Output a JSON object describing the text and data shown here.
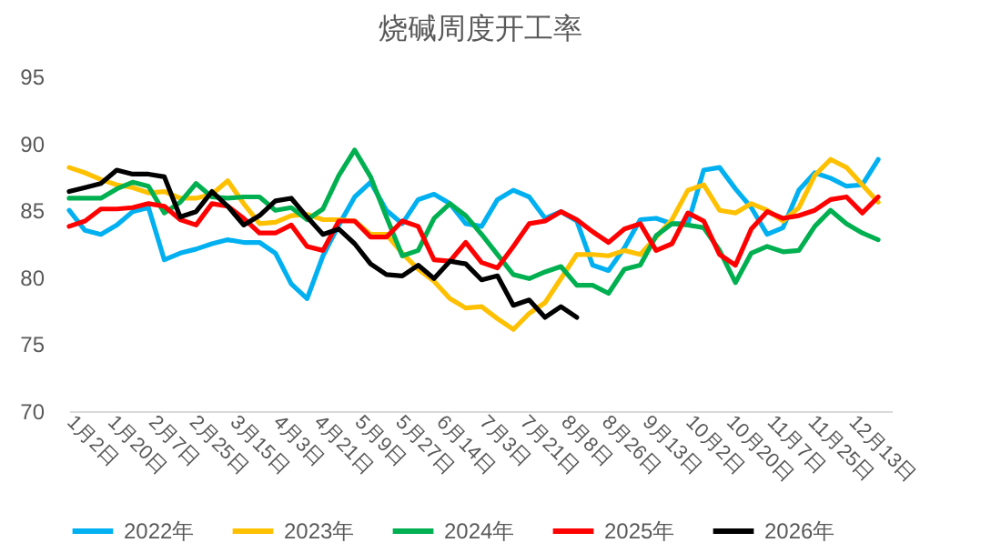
{
  "chart_data": {
    "type": "line",
    "title": "烧碱周度开工率",
    "x": [
      "--01-02",
      "--01-09",
      "--01-16",
      "--01-23",
      "--01-30",
      "--02-06",
      "--02-13",
      "--02-20",
      "--02-27",
      "--03-06",
      "--03-13",
      "--03-20",
      "--03-27",
      "--04-03",
      "--04-10",
      "--04-17",
      "--04-24",
      "--05-01",
      "--05-08",
      "--05-15",
      "--05-22",
      "--05-29",
      "--06-05",
      "--06-12",
      "--06-19",
      "--06-26",
      "--07-03",
      "--07-10",
      "--07-17",
      "--07-24",
      "--07-31",
      "--08-07",
      "--08-14",
      "--08-21",
      "--08-28",
      "--09-04",
      "--09-11",
      "--09-18",
      "--09-25",
      "--10-02",
      "--10-09",
      "--10-16",
      "--10-23",
      "--10-30",
      "--11-06",
      "--11-13",
      "--11-20",
      "--11-27",
      "--12-04",
      "--12-11",
      "--12-18",
      "--12-25"
    ],
    "xlim": [
      "--01-02",
      "--12-31"
    ],
    "xticks": [
      {
        "value": "--01-02",
        "label": "1月2日"
      },
      {
        "value": "--01-20",
        "label": "1月20日"
      },
      {
        "value": "--02-07",
        "label": "2月7日"
      },
      {
        "value": "--02-25",
        "label": "2月25日"
      },
      {
        "value": "--03-15",
        "label": "3月15日"
      },
      {
        "value": "--04-03",
        "label": "4月3日"
      },
      {
        "value": "--04-21",
        "label": "4月21日"
      },
      {
        "value": "--05-09",
        "label": "5月9日"
      },
      {
        "value": "--05-27",
        "label": "5月27日"
      },
      {
        "value": "--06-14",
        "label": "6月14日"
      },
      {
        "value": "--07-03",
        "label": "7月3日"
      },
      {
        "value": "--07-21",
        "label": "7月21日"
      },
      {
        "value": "--08-08",
        "label": "8月8日"
      },
      {
        "value": "--08-26",
        "label": "8月26日"
      },
      {
        "value": "--09-13",
        "label": "9月13日"
      },
      {
        "value": "--10-02",
        "label": "10月2日"
      },
      {
        "value": "--10-20",
        "label": "10月20日"
      },
      {
        "value": "--11-07",
        "label": "11月7日"
      },
      {
        "value": "--11-25",
        "label": "11月25日"
      },
      {
        "value": "--12-13",
        "label": "12月13日"
      }
    ],
    "ylim": [
      70,
      95
    ],
    "yticks": [
      70,
      75,
      80,
      85,
      90,
      95
    ],
    "grid": false,
    "legend": "bottom",
    "line_style": "solid",
    "series": [
      {
        "name": "2022年",
        "color": "#00b0f0",
        "values": [
          85.0,
          83.5,
          83.2,
          83.9,
          84.9,
          85.2,
          81.3,
          81.8,
          82.1,
          82.5,
          82.8,
          82.6,
          82.6,
          81.8,
          79.5,
          78.4,
          81.6,
          83.9,
          86.0,
          87.1,
          85.0,
          84.0,
          85.8,
          86.2,
          85.5,
          84.0,
          83.8,
          85.8,
          86.5,
          86.0,
          84.4,
          84.9,
          84.2,
          80.9,
          80.5,
          82.2,
          84.3,
          84.4,
          84.0,
          84.0,
          88.0,
          88.2,
          86.6,
          85.2,
          83.2,
          83.7,
          86.5,
          87.8,
          87.4,
          86.8,
          86.9,
          88.8
        ]
      },
      {
        "name": "2023年",
        "color": "#ffc000",
        "values": [
          88.2,
          87.8,
          87.3,
          86.9,
          86.7,
          86.3,
          86.4,
          85.9,
          85.9,
          86.2,
          87.2,
          85.5,
          84.0,
          84.1,
          84.6,
          84.7,
          84.3,
          84.3,
          84.2,
          83.2,
          83.2,
          81.8,
          80.6,
          79.7,
          78.4,
          77.7,
          77.8,
          76.9,
          76.1,
          77.3,
          78.1,
          79.9,
          81.7,
          81.7,
          81.6,
          82.0,
          81.7,
          83.0,
          84.3,
          86.5,
          86.9,
          85.0,
          84.8,
          85.5,
          85.0,
          84.2,
          85.2,
          87.6,
          88.8,
          88.2,
          86.9,
          85.6
        ]
      },
      {
        "name": "2024年",
        "color": "#00b050",
        "values": [
          85.9,
          85.9,
          85.9,
          86.6,
          87.1,
          86.8,
          84.8,
          85.6,
          87.0,
          86.0,
          85.9,
          86.0,
          86.0,
          85.0,
          85.2,
          84.3,
          85.1,
          87.6,
          89.5,
          87.5,
          84.5,
          81.6,
          82.0,
          84.4,
          85.5,
          84.6,
          83.2,
          81.7,
          80.2,
          79.9,
          80.4,
          80.8,
          79.4,
          79.4,
          78.8,
          80.6,
          80.9,
          83.1,
          84.0,
          83.9,
          83.7,
          82.0,
          79.6,
          81.8,
          82.3,
          81.9,
          82.0,
          83.8,
          85.0,
          84.0,
          83.3,
          82.8
        ]
      },
      {
        "name": "2025年",
        "color": "#ff0000",
        "values": [
          83.8,
          84.2,
          85.1,
          85.1,
          85.2,
          85.5,
          85.3,
          84.3,
          83.9,
          85.5,
          85.3,
          84.4,
          83.3,
          83.3,
          83.9,
          82.3,
          82.0,
          84.2,
          84.2,
          83.0,
          83.0,
          84.2,
          83.8,
          81.3,
          81.2,
          82.6,
          81.1,
          80.7,
          82.3,
          84.0,
          84.2,
          84.9,
          84.3,
          83.4,
          82.6,
          83.6,
          84.0,
          82.0,
          82.5,
          84.8,
          84.2,
          81.7,
          80.9,
          83.6,
          84.9,
          84.4,
          84.6,
          85.0,
          85.8,
          86.0,
          84.8,
          86.0
        ]
      },
      {
        "name": "2026年",
        "color": "#000000",
        "x": [
          "--01-02",
          "--01-09",
          "--01-16",
          "--01-23",
          "--01-30",
          "--02-06",
          "--02-13",
          "--02-20",
          "--02-27",
          "--03-06",
          "--03-13",
          "--03-20",
          "--03-27",
          "--04-03",
          "--04-10",
          "--04-17",
          "--04-24",
          "--05-01",
          "--05-08",
          "--05-15",
          "--05-22",
          "--05-29",
          "--06-05",
          "--06-12",
          "--06-19",
          "--06-26",
          "--07-03",
          "--07-10",
          "--07-17",
          "--07-24",
          "--07-31",
          "--08-07",
          "--08-14"
        ],
        "values": [
          86.4,
          86.7,
          87.0,
          88.0,
          87.7,
          87.7,
          87.5,
          84.5,
          84.9,
          86.4,
          85.3,
          83.9,
          84.6,
          85.7,
          85.9,
          84.5,
          83.2,
          83.6,
          82.5,
          81.0,
          80.2,
          80.1,
          80.9,
          79.9,
          81.2,
          81.0,
          79.8,
          80.1,
          77.9,
          78.3,
          77.0,
          77.8,
          77.0
        ]
      }
    ]
  }
}
